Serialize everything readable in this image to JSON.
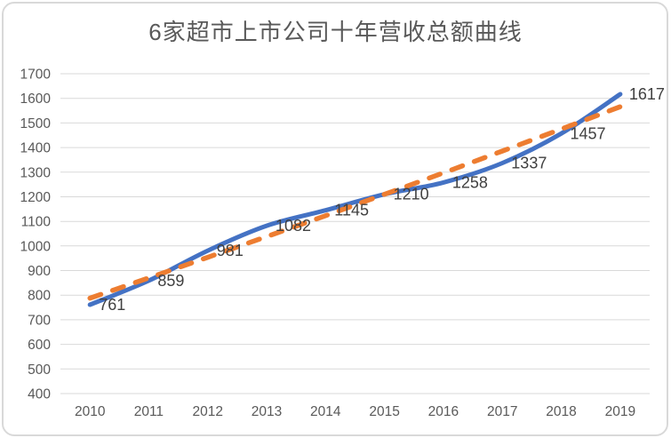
{
  "chart": {
    "title": "6家超市上市公司十年营收总额曲线"
  },
  "colors": {
    "main_line": "#4472C4",
    "trendline": "#ED7D31",
    "gridline": "#D9D9D9",
    "axis_text": "#595959",
    "data_label_text": "#404040",
    "frame_border": "#D9D9D9",
    "background": "#FFFFFF"
  },
  "chart_data": {
    "type": "line",
    "title": "6家超市上市公司十年营收总额曲线",
    "categories": [
      "2010",
      "2011",
      "2012",
      "2013",
      "2014",
      "2015",
      "2016",
      "2017",
      "2018",
      "2019"
    ],
    "series": [
      {
        "id": "main-line",
        "line_style": "solid",
        "smooth": true,
        "color": "#4472C4",
        "stroke_width": 5,
        "show_labels": true,
        "values": [
          761,
          859,
          981,
          1082,
          1145,
          1210,
          1258,
          1337,
          1457,
          1617
        ]
      },
      {
        "id": "trendline",
        "line_style": "dashed",
        "smooth": true,
        "color": "#ED7D31",
        "stroke_width": 5.5,
        "show_labels": false,
        "values": [
          788,
          870,
          954,
          1038,
          1123,
          1210,
          1297,
          1386,
          1475,
          1566
        ]
      }
    ],
    "xlabel": "",
    "ylabel": "",
    "ylim": [
      400,
      1700
    ],
    "ytick_step": 100,
    "grid": true,
    "legend_position": "none",
    "data_label_position": "right"
  }
}
